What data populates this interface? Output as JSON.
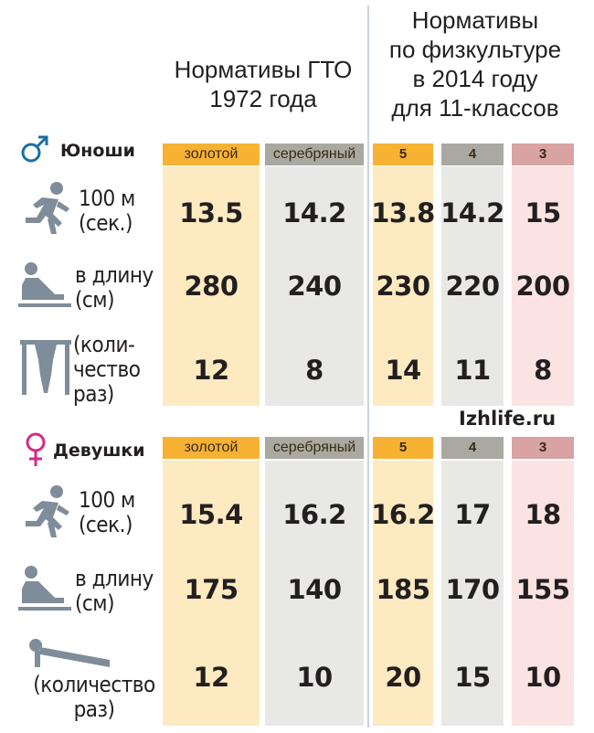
{
  "colors": {
    "gold_header": "#f7b234",
    "silver_header": "#a9a9a2",
    "red_header": "#d9a3a3",
    "gold_column": "#fdeac0",
    "silver_column": "#e8e8e7",
    "red_column": "#fbe3e3",
    "male_symbol": "#1a6fa8",
    "female_symbol": "#d6298a",
    "icon_gray": "#7f8c99"
  },
  "headers": {
    "gto": "Нормативы ГТО\n1972 года",
    "school": "Нормативы\nпо физкультуре\nв 2014 году\nдля 11-классов"
  },
  "columns": [
    "золотой",
    "серебряный",
    "5",
    "4",
    "3"
  ],
  "site": "Izhlife.ru",
  "boys": {
    "label": "Юноши",
    "symbol": "♂",
    "rows": [
      {
        "icon": "running-icon",
        "label": "100 м\n(сек.)",
        "values": [
          "13.5",
          "14.2",
          "13.8",
          "14.2",
          "15"
        ]
      },
      {
        "icon": "long-jump-icon",
        "label": "в длину\n(см)",
        "values": [
          "280",
          "240",
          "230",
          "220",
          "200"
        ]
      },
      {
        "icon": "pull-up-icon",
        "label": "(коли-\nчество\nраз)",
        "values": [
          "12",
          "8",
          "14",
          "11",
          "8"
        ]
      }
    ]
  },
  "girls": {
    "label": "Девушки",
    "symbol": "♀",
    "rows": [
      {
        "icon": "running-icon",
        "label": "100 м\n(сек.)",
        "values": [
          "15.4",
          "16.2",
          "16.2",
          "17",
          "18"
        ]
      },
      {
        "icon": "long-jump-icon",
        "label": "в длину\n(см)",
        "values": [
          "175",
          "140",
          "185",
          "170",
          "155"
        ]
      },
      {
        "icon": "push-up-icon",
        "label": "(количество\nраз)",
        "values": [
          "12",
          "10",
          "20",
          "15",
          "10"
        ]
      }
    ]
  }
}
